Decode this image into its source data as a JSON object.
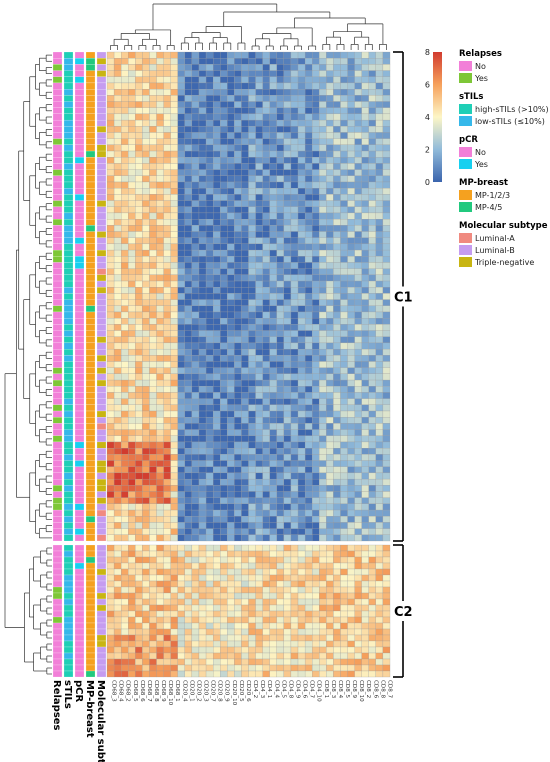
{
  "chart_data": {
    "type": "heatmap",
    "columns": [
      "CD68_3",
      "CD68_4",
      "CD68_2",
      "CD68_5",
      "CD68_6",
      "CD68_7",
      "CD68_8",
      "CD68_9",
      "CD68_10",
      "CD68_1",
      "CD20_4",
      "CD20_1",
      "CD20_2",
      "CD20_3",
      "CD20_7",
      "CD20_8",
      "CD20_9",
      "CD20_10",
      "CD20_5",
      "CD20_6",
      "CD4_2",
      "CD4_3",
      "CD4_1",
      "CD4_4",
      "CD4_5",
      "CD4_8",
      "CD4_9",
      "CD4_6",
      "CD4_7",
      "CD4_10",
      "CD8_1",
      "CD8_3",
      "CD8_4",
      "CD8_5",
      "CD8_9",
      "CD8_10",
      "CD8_2",
      "CD8_6",
      "CD8_8",
      "CD8_7"
    ],
    "colorbar": {
      "min": 0,
      "max": 8,
      "ticks": [
        0,
        2,
        4,
        6,
        8
      ],
      "colors": [
        "#3a64ad",
        "#91bbda",
        "#fdf6c6",
        "#f6a15c",
        "#d13b2f"
      ]
    },
    "annotation_tracks": [
      "Relapses",
      "sTILs",
      "pCR",
      "MP-breast",
      "Molecular subtype"
    ],
    "legend": [
      {
        "title": "Relapses",
        "items": [
          {
            "label": "No",
            "color": "#f27fd8"
          },
          {
            "label": "Yes",
            "color": "#7ec737"
          }
        ]
      },
      {
        "title": "sTILs",
        "items": [
          {
            "label": "high-sTILs (>10%)",
            "color": "#1fcfb6"
          },
          {
            "label": "low-sTILs (≤10%)",
            "color": "#35b8ea"
          }
        ]
      },
      {
        "title": "pCR",
        "items": [
          {
            "label": "No",
            "color": "#f27fd8"
          },
          {
            "label": "Yes",
            "color": "#17d0f0"
          }
        ]
      },
      {
        "title": "MP-breast",
        "items": [
          {
            "label": "MP-1/2/3",
            "color": "#f5a11f"
          },
          {
            "label": "MP-4/5",
            "color": "#21c97e"
          }
        ]
      },
      {
        "title": "Molecular subtype",
        "items": [
          {
            "label": "Luminal-A",
            "color": "#f08a80"
          },
          {
            "label": "Luminal-B",
            "color": "#c59cf0"
          },
          {
            "label": "Triple-negative",
            "color": "#c8b512"
          }
        ]
      }
    ],
    "clusters": [
      {
        "label": "C1",
        "n_rows": 79
      },
      {
        "label": "C2",
        "n_rows": 22
      }
    ],
    "n_rows": 101,
    "block_means": {
      "C1": {
        "CD68": 4.6,
        "CD20": 0.6,
        "CD4": 1.2,
        "CD8": 2.2
      },
      "C2": {
        "CD68": 5.0,
        "CD20": 4.2,
        "CD4": 4.6,
        "CD8": 4.9
      }
    }
  }
}
